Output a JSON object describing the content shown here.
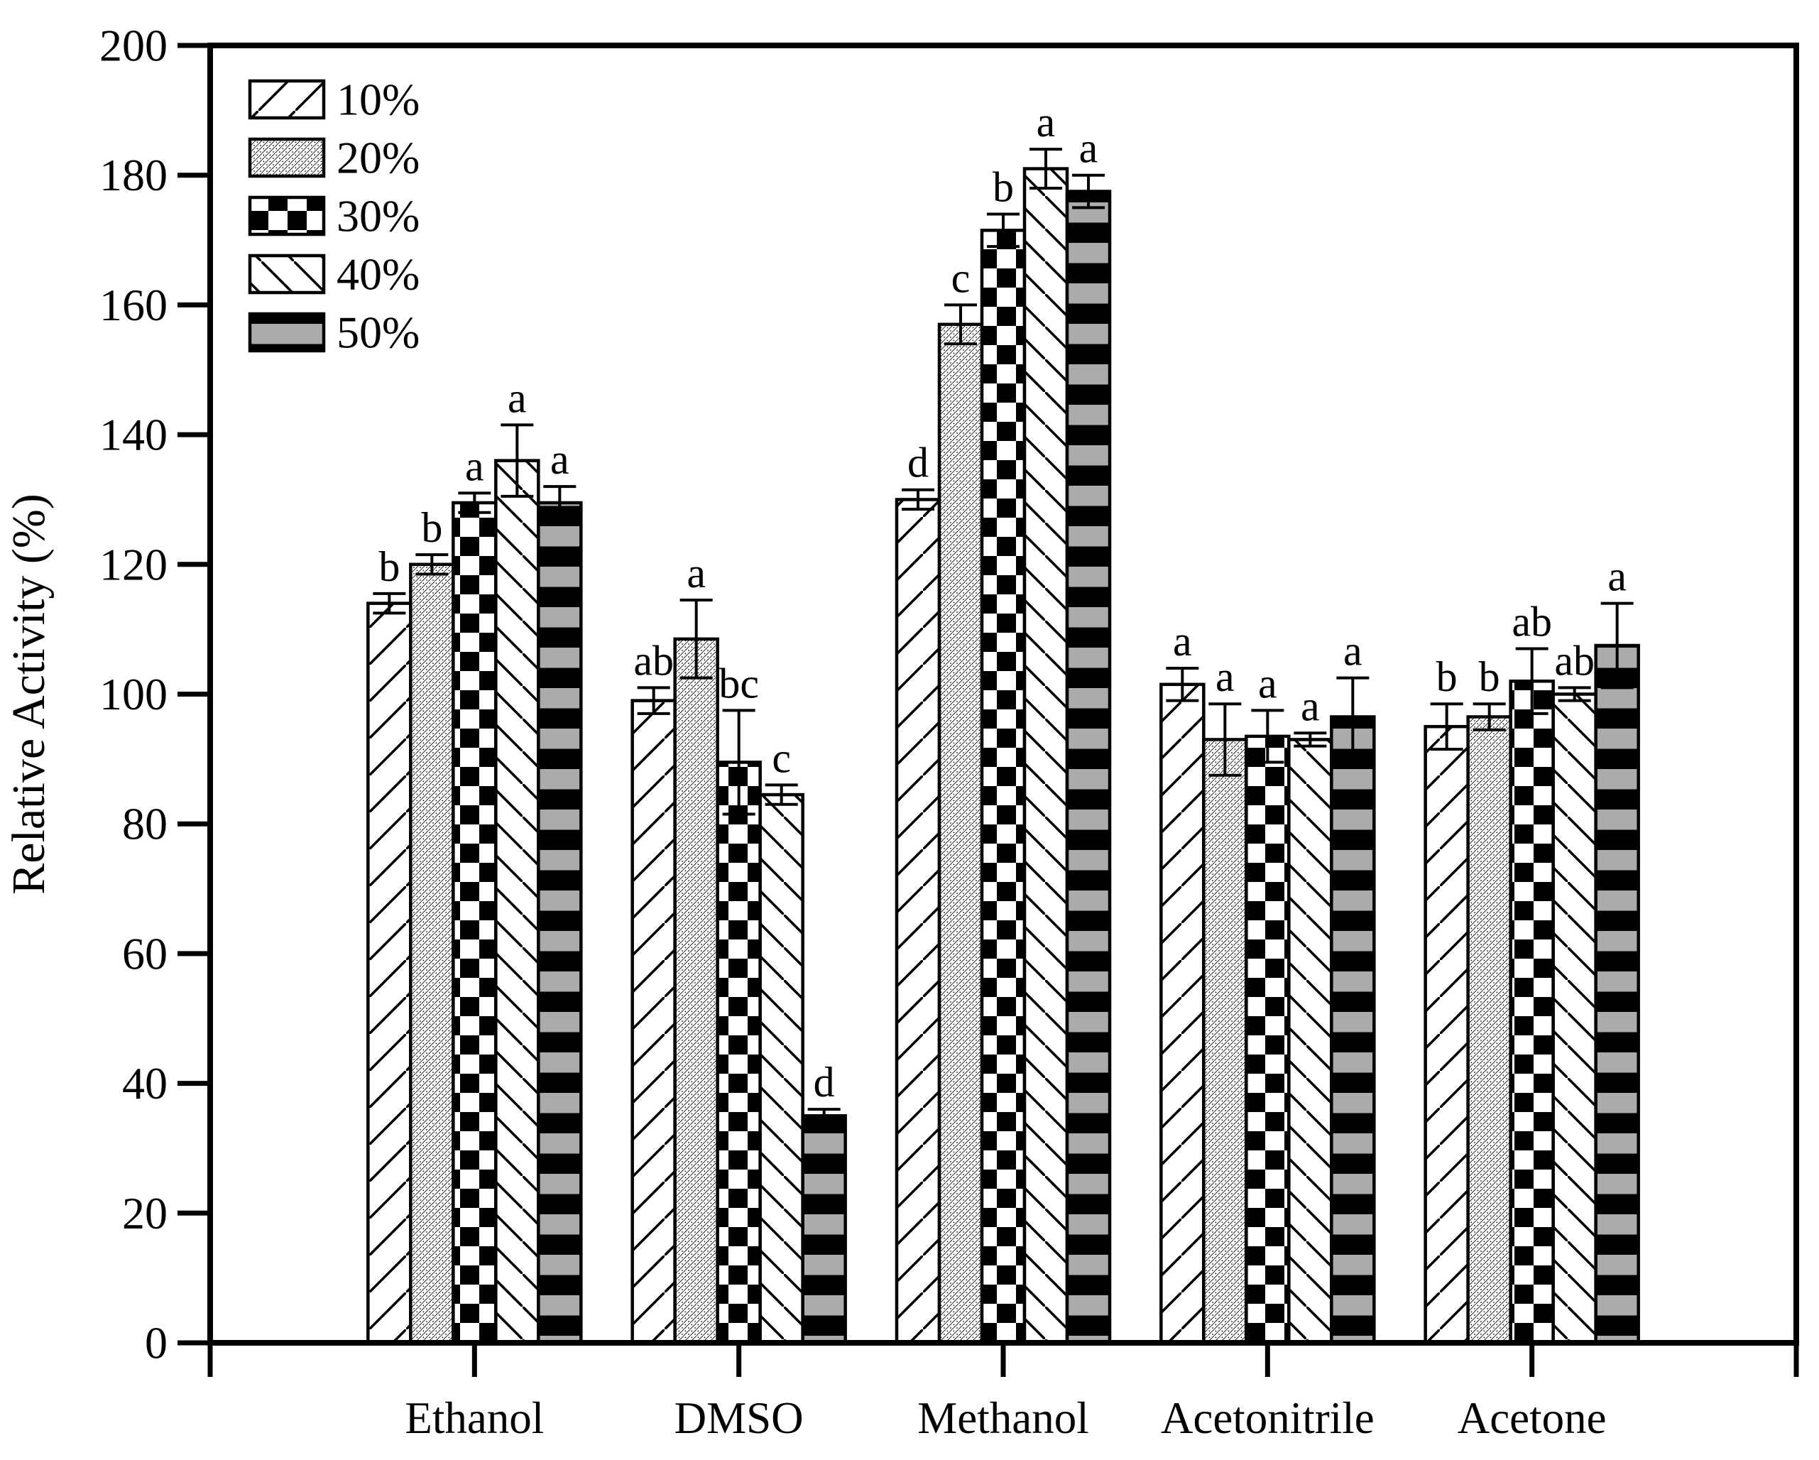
{
  "figure": {
    "background": "#ffffff",
    "ink_color": "#000000",
    "gray_band_color": "#ababab",
    "aria_label": "Bar chart of relative enzyme activity in organic solvents"
  },
  "chart_data": {
    "type": "bar",
    "title": "",
    "xlabel": "",
    "ylabel": "Relative Activity (%)",
    "ylim": [
      0,
      200
    ],
    "ytick_interval": 20,
    "ytick_labels": [
      "0",
      "20",
      "40",
      "60",
      "80",
      "100",
      "120",
      "140",
      "160",
      "180",
      "200"
    ],
    "grid": false,
    "legend_position": "top-left-inside",
    "categories": [
      "Ethanol",
      "DMSO",
      "Methanol",
      "Acetonitrile",
      "Acetone"
    ],
    "series": [
      {
        "name": "10%",
        "pattern": "diagonal-forward",
        "values": [
          114,
          99,
          130,
          101.5,
          95
        ],
        "errors": [
          1.5,
          2,
          1.5,
          2.5,
          3.5
        ],
        "sig_letters": [
          "b",
          "ab",
          "d",
          "a",
          "b"
        ]
      },
      {
        "name": "20%",
        "pattern": "fine-dots",
        "values": [
          120,
          108.5,
          157,
          93,
          96.5
        ],
        "errors": [
          1.5,
          6,
          3,
          5.5,
          2
        ],
        "sig_letters": [
          "b",
          "a",
          "c",
          "a",
          "b"
        ]
      },
      {
        "name": "30%",
        "pattern": "checkerboard",
        "values": [
          129.5,
          89.5,
          171.5,
          93.5,
          102
        ],
        "errors": [
          1.5,
          8,
          2.5,
          4,
          5
        ],
        "sig_letters": [
          "a",
          "bc",
          "b",
          "a",
          "ab"
        ]
      },
      {
        "name": "40%",
        "pattern": "diagonal-backward",
        "values": [
          136,
          84.5,
          181,
          93,
          100
        ],
        "errors": [
          5.5,
          1.5,
          3,
          1,
          1
        ],
        "sig_letters": [
          "a",
          "c",
          "a",
          "a",
          "ab"
        ]
      },
      {
        "name": "50%",
        "pattern": "gray-horizontal-bands",
        "values": [
          129.5,
          35,
          177.5,
          96.5,
          107.5
        ],
        "errors": [
          2.5,
          1,
          2.5,
          6,
          6.5
        ],
        "sig_letters": [
          "a",
          "d",
          "a",
          "a",
          "a"
        ]
      }
    ]
  }
}
